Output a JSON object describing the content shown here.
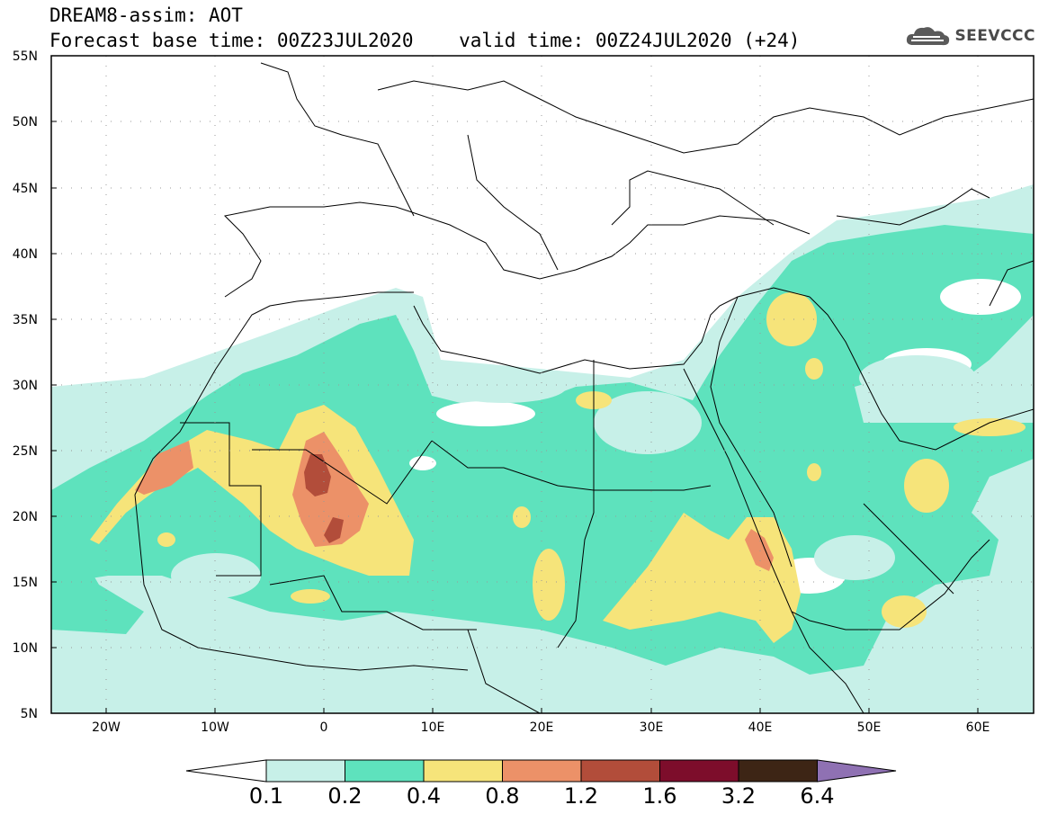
{
  "header": {
    "title": "DREAM8-assim: AOT",
    "subtitle": "Forecast base time: 00Z23JUL2020    valid time: 00Z24JUL2020 (+24)"
  },
  "brand": {
    "name": "SEEVCCC",
    "icon": "cloud-logo-icon"
  },
  "map": {
    "lat_labels": [
      "55N",
      "50N",
      "45N",
      "40N",
      "35N",
      "30N",
      "25N",
      "20N",
      "15N",
      "10N",
      "5N"
    ],
    "lon_labels": [
      "20W",
      "10W",
      "0",
      "10E",
      "20E",
      "30E",
      "40E",
      "50E",
      "60E"
    ],
    "extent": {
      "lon": [
        -25,
        65
      ],
      "lat": [
        5,
        55
      ]
    },
    "field": "Aerosol optical thickness"
  },
  "colorbar": {
    "levels": [
      "0.1",
      "0.2",
      "0.4",
      "0.8",
      "1.2",
      "1.6",
      "3.2",
      "6.4"
    ],
    "colors": [
      "#ffffff",
      "#c7f0e8",
      "#5ee2bd",
      "#f6e47a",
      "#ec9168",
      "#b24d3a",
      "#7d0d2b",
      "#3d2515",
      "#8f71b3"
    ]
  },
  "palette": {
    "level1": "#c7f0e8",
    "level2": "#5ee2bd",
    "level3": "#f6e47a",
    "level4": "#ec9168",
    "level5": "#b24d3a"
  }
}
